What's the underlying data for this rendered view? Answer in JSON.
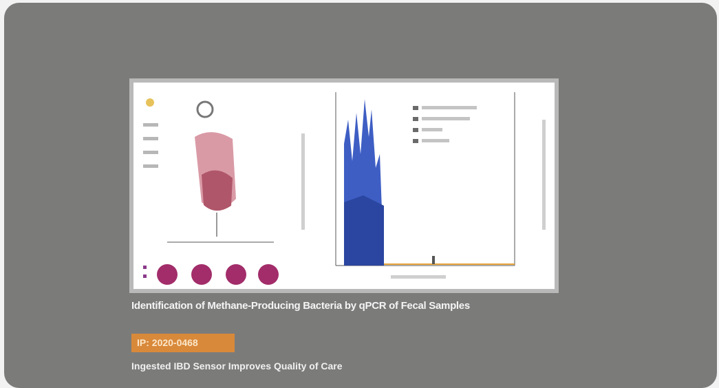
{
  "card": {
    "caption": "Identification of Methane-Producing Bacteria by qPCR of Fecal Samples",
    "tag": "IP: 2020-0468",
    "subtitle": "Ingested IBD Sensor Improves Quality of Care"
  }
}
